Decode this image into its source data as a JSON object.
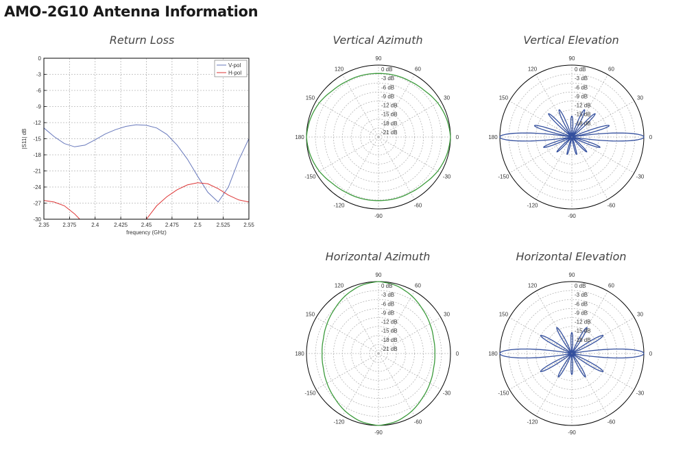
{
  "page": {
    "title": "AMO-2G10 Antenna Information"
  },
  "chart_data": [
    {
      "id": "return-loss",
      "type": "line",
      "title": "Return Loss",
      "xlabel": "frequency (GHz)",
      "ylabel": "|S11| dB",
      "xlim": [
        2.35,
        2.55
      ],
      "ylim": [
        -30,
        0
      ],
      "xticks": [
        "2.35",
        "2.375",
        "2.4",
        "2.425",
        "2.45",
        "2.475",
        "2.5",
        "2.525",
        "2.55"
      ],
      "yticks": [
        "0",
        "-3",
        "-6",
        "-9",
        "-12",
        "-15",
        "-18",
        "-21",
        "-24",
        "-27",
        "-30"
      ],
      "grid": true,
      "legend": "top-right",
      "colors": {
        "V-pol": "#6677bb",
        "H-pol": "#dd3333"
      },
      "series": [
        {
          "name": "V-pol",
          "x": [
            2.35,
            2.36,
            2.37,
            2.38,
            2.39,
            2.4,
            2.41,
            2.42,
            2.43,
            2.44,
            2.45,
            2.46,
            2.47,
            2.48,
            2.49,
            2.5,
            2.51,
            2.52,
            2.53,
            2.54,
            2.55
          ],
          "y": [
            -13,
            -14.6,
            -15.9,
            -16.5,
            -16.2,
            -15.2,
            -14.1,
            -13.3,
            -12.7,
            -12.4,
            -12.5,
            -13.0,
            -14.2,
            -16.2,
            -18.8,
            -22,
            -25,
            -26.8,
            -24,
            -19,
            -15
          ]
        },
        {
          "name": "H-pol",
          "x": [
            2.35,
            2.36,
            2.37,
            2.38,
            2.385,
            2.45,
            2.46,
            2.47,
            2.48,
            2.49,
            2.5,
            2.51,
            2.52,
            2.53,
            2.54,
            2.55
          ],
          "y": [
            -26.5,
            -26.8,
            -27.5,
            -29,
            -30,
            -30,
            -27.5,
            -25.8,
            -24.5,
            -23.6,
            -23.2,
            -23.4,
            -24.3,
            -25.5,
            -26.4,
            -26.8
          ]
        }
      ]
    },
    {
      "id": "vertical-azimuth",
      "type": "polar",
      "title": "Vertical Azimuth",
      "rlabels": [
        "0 dB",
        "-3 dB",
        "-6 dB",
        "-9 dB",
        "-12 dB",
        "-15 dB",
        "-18 dB",
        "-21 dB"
      ],
      "angle_labels": [
        "0",
        "30",
        "60",
        "90",
        "120",
        "150",
        "180",
        "-150",
        "-120",
        "-90",
        "-60",
        "-30"
      ],
      "color": "#3a9a3a",
      "pattern": {
        "angles_deg": [
          0,
          15,
          30,
          45,
          60,
          75,
          90,
          105,
          120,
          135,
          150,
          165,
          180,
          195,
          210,
          225,
          240,
          255,
          270,
          285,
          300,
          315,
          330,
          345
        ],
        "gain_db": [
          0,
          -0.5,
          -1.2,
          -2.2,
          -2.6,
          -2.7,
          -2.8,
          -2.7,
          -2.6,
          -2.2,
          -1.2,
          -0.5,
          0,
          -0.5,
          -1.2,
          -2.2,
          -2.6,
          -2.7,
          -2.8,
          -2.7,
          -2.6,
          -2.2,
          -1.2,
          -0.5
        ]
      }
    },
    {
      "id": "vertical-elevation",
      "type": "polar",
      "title": "Vertical Elevation",
      "rlabels": [
        "0 dB",
        "-3 dB",
        "-6 dB",
        "-9 dB",
        "-12 dB",
        "-15 dB",
        "-18 dB"
      ],
      "angle_labels": [
        "0",
        "30",
        "60",
        "90",
        "120",
        "150",
        "180",
        "-150",
        "-120",
        "-90",
        "-60",
        "-30"
      ],
      "color": "#334f9e",
      "lobes": [
        {
          "angle_deg": 0,
          "gain_db": 0,
          "width_deg": 9
        },
        {
          "angle_deg": 180,
          "gain_db": 0,
          "width_deg": 9
        },
        {
          "angle_deg": 17,
          "gain_db": -11,
          "width_deg": 6
        },
        {
          "angle_deg": 163,
          "gain_db": -11,
          "width_deg": 6
        },
        {
          "angle_deg": -20,
          "gain_db": -14,
          "width_deg": 6
        },
        {
          "angle_deg": -160,
          "gain_db": -14,
          "width_deg": 6
        },
        {
          "angle_deg": 45,
          "gain_db": -13,
          "width_deg": 6
        },
        {
          "angle_deg": 135,
          "gain_db": -13,
          "width_deg": 6
        },
        {
          "angle_deg": 65,
          "gain_db": -14,
          "width_deg": 7
        },
        {
          "angle_deg": 115,
          "gain_db": -14,
          "width_deg": 7
        },
        {
          "angle_deg": 90,
          "gain_db": -17,
          "width_deg": 8
        },
        {
          "angle_deg": -45,
          "gain_db": -17,
          "width_deg": 6
        },
        {
          "angle_deg": -135,
          "gain_db": -17,
          "width_deg": 6
        },
        {
          "angle_deg": -75,
          "gain_db": -18,
          "width_deg": 6
        },
        {
          "angle_deg": -105,
          "gain_db": -18,
          "width_deg": 6
        }
      ]
    },
    {
      "id": "horizontal-azimuth",
      "type": "polar",
      "title": "Horizontal Azimuth",
      "rlabels": [
        "0 dB",
        "-3 dB",
        "-6 dB",
        "-9 dB",
        "-12 dB",
        "-15 dB",
        "-18 dB",
        "-21 dB"
      ],
      "angle_labels": [
        "0",
        "30",
        "60",
        "90",
        "120",
        "150",
        "180",
        "-150",
        "-120",
        "-90",
        "-60",
        "-30"
      ],
      "color": "#3a9a3a",
      "pattern": {
        "angles_deg": [
          0,
          15,
          30,
          45,
          60,
          75,
          90,
          105,
          120,
          135,
          150,
          165,
          180,
          195,
          210,
          225,
          240,
          255,
          270,
          285,
          300,
          315,
          330,
          345
        ],
        "gain_db": [
          -5.2,
          -5.0,
          -4.2,
          -3.2,
          -1.8,
          -0.6,
          0,
          -0.6,
          -1.8,
          -3.2,
          -4.2,
          -5.0,
          -5.2,
          -5.0,
          -4.2,
          -3.2,
          -1.8,
          -0.6,
          0,
          -0.6,
          -1.8,
          -3.2,
          -4.2,
          -5.0
        ]
      }
    },
    {
      "id": "horizontal-elevation",
      "type": "polar",
      "title": "Horizontal Elevation",
      "rlabels": [
        "0 dB",
        "-3 dB",
        "-6 dB",
        "-9 dB",
        "-12 dB",
        "-15 dB",
        "-18 dB"
      ],
      "angle_labels": [
        "0",
        "30",
        "60",
        "90",
        "120",
        "150",
        "180",
        "-150",
        "-120",
        "-90",
        "-60",
        "-30"
      ],
      "color": "#334f9e",
      "lobes": [
        {
          "angle_deg": 0,
          "gain_db": 0,
          "width_deg": 10
        },
        {
          "angle_deg": 180,
          "gain_db": 0,
          "width_deg": 10
        },
        {
          "angle_deg": 30,
          "gain_db": -12,
          "width_deg": 7
        },
        {
          "angle_deg": 150,
          "gain_db": -12,
          "width_deg": 7
        },
        {
          "angle_deg": -30,
          "gain_db": -12,
          "width_deg": 7
        },
        {
          "angle_deg": -150,
          "gain_db": -12,
          "width_deg": 7
        },
        {
          "angle_deg": 60,
          "gain_db": -14,
          "width_deg": 7
        },
        {
          "angle_deg": 120,
          "gain_db": -14,
          "width_deg": 7
        },
        {
          "angle_deg": -60,
          "gain_db": -15,
          "width_deg": 7
        },
        {
          "angle_deg": -120,
          "gain_db": -15,
          "width_deg": 7
        },
        {
          "angle_deg": 90,
          "gain_db": -17,
          "width_deg": 7
        },
        {
          "angle_deg": -90,
          "gain_db": -17,
          "width_deg": 7
        }
      ]
    }
  ]
}
